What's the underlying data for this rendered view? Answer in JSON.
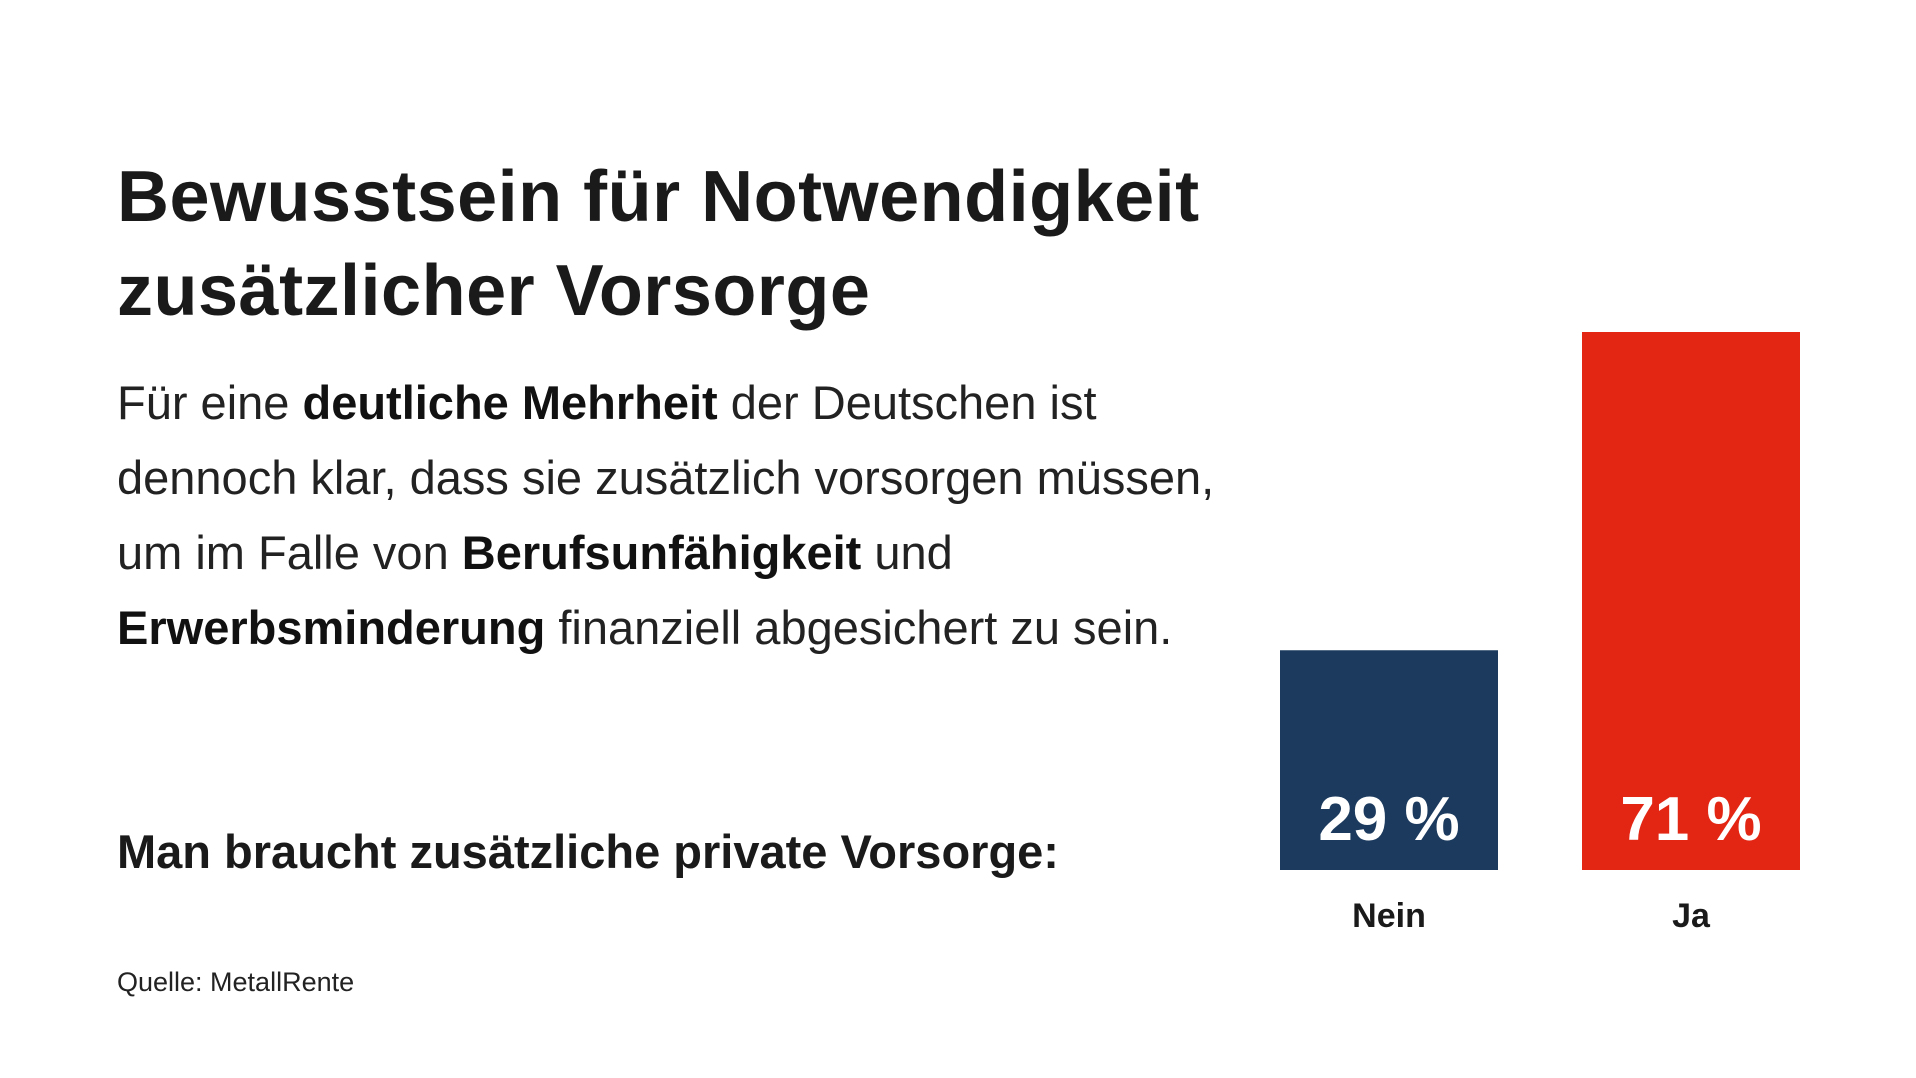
{
  "title_line1": "Bewusstsein für Notwendigkeit",
  "title_line2": "zusätzlicher Vorsorge",
  "body": [
    "Für eine ",
    "deutliche Mehrheit",
    " der Deutschen ist dennoch klar, dass sie zusätzlich vorsorgen müssen, um im Falle von ",
    "Berufsunfähigkeit",
    " und ",
    "Erwerbsminderung",
    " finanziell abgesichert zu sein."
  ],
  "question": "Man braucht zusätzliche private Vorsorge:",
  "source": "Quelle: MetallRente",
  "chart_data": {
    "type": "bar",
    "categories": [
      "Nein",
      "Ja"
    ],
    "values": [
      29,
      71
    ],
    "value_labels": [
      "29 %",
      "71 %"
    ],
    "colors": [
      "#1b3a5e",
      "#e32614"
    ],
    "ylim": [
      0,
      71
    ],
    "grid": false,
    "axes_visible": false
  }
}
